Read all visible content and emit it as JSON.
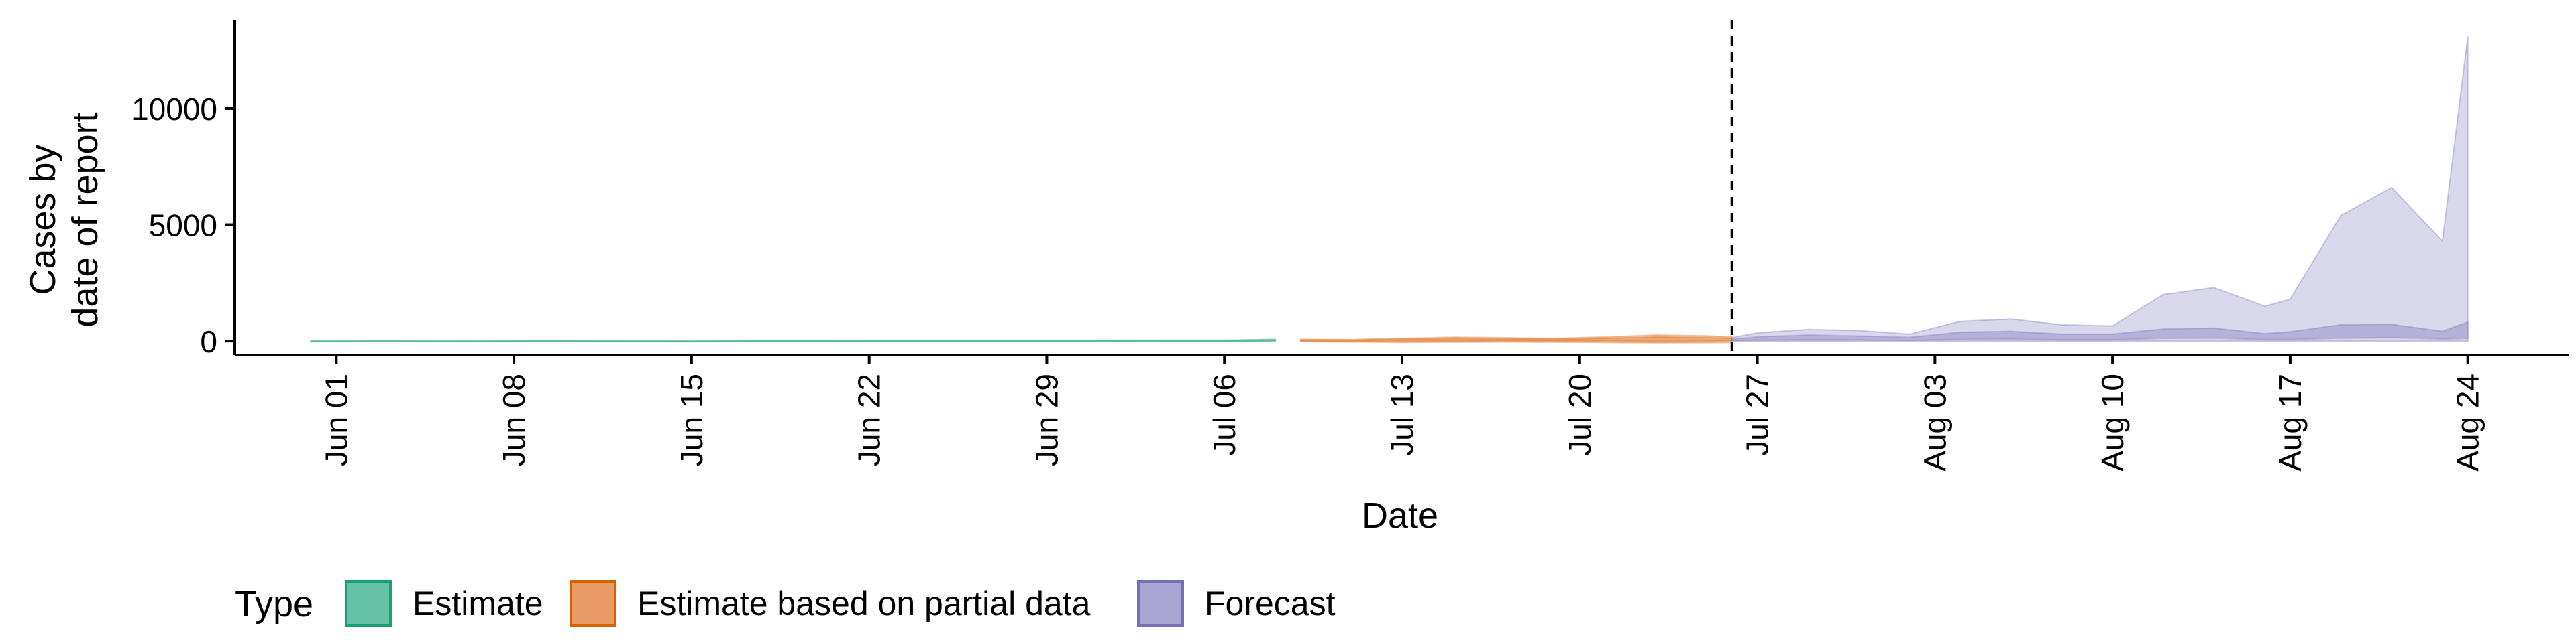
{
  "chart_data": {
    "type": "area",
    "title": "",
    "xlabel": "Date",
    "ylabel_lines": [
      "Cases by",
      "date of report"
    ],
    "y_ticks": [
      0,
      5000,
      10000
    ],
    "ylim": [
      -600,
      13800
    ],
    "xlim": [
      "2020-05-28",
      "2020-08-28"
    ],
    "x_ticks": [
      {
        "date": "2020-06-01",
        "label": "Jun 01"
      },
      {
        "date": "2020-06-08",
        "label": "Jun 08"
      },
      {
        "date": "2020-06-15",
        "label": "Jun 15"
      },
      {
        "date": "2020-06-22",
        "label": "Jun 22"
      },
      {
        "date": "2020-06-29",
        "label": "Jun 29"
      },
      {
        "date": "2020-07-06",
        "label": "Jul 06"
      },
      {
        "date": "2020-07-13",
        "label": "Jul 13"
      },
      {
        "date": "2020-07-20",
        "label": "Jul 20"
      },
      {
        "date": "2020-07-27",
        "label": "Jul 27"
      },
      {
        "date": "2020-08-03",
        "label": "Aug 03"
      },
      {
        "date": "2020-08-10",
        "label": "Aug 10"
      },
      {
        "date": "2020-08-17",
        "label": "Aug 17"
      },
      {
        "date": "2020-08-24",
        "label": "Aug 24"
      }
    ],
    "forecast_start": "2020-07-26",
    "grid": false,
    "legend": {
      "title": "Type",
      "position": "bottom-left",
      "entries": [
        {
          "label": "Estimate",
          "fill": "#66c2a5",
          "stroke": "#1b9e77"
        },
        {
          "label": "Estimate based on partial data",
          "fill": "#e99a62",
          "stroke": "#d95f02"
        },
        {
          "label": "Forecast",
          "fill": "#a9a6d4",
          "stroke": "#7570b3"
        }
      ]
    },
    "series": [
      {
        "name": "Estimate",
        "color": "#66c2a5",
        "stroke": "#1b9e77",
        "x": [
          "2020-05-31",
          "2020-06-03",
          "2020-06-06",
          "2020-06-09",
          "2020-06-12",
          "2020-06-15",
          "2020-06-18",
          "2020-06-21",
          "2020-06-24",
          "2020-06-27",
          "2020-06-30",
          "2020-07-03",
          "2020-07-06",
          "2020-07-08"
        ],
        "lower_outer": [
          -30,
          -25,
          -30,
          -25,
          -30,
          -35,
          -20,
          -25,
          -20,
          -25,
          -20,
          -15,
          -25,
          0
        ],
        "upper_outer": [
          10,
          15,
          10,
          20,
          15,
          10,
          30,
          25,
          35,
          30,
          30,
          45,
          40,
          80
        ],
        "lower_inner": [
          -15,
          -10,
          -15,
          -10,
          -15,
          -20,
          -5,
          -10,
          -5,
          -10,
          -5,
          0,
          -10,
          20
        ],
        "upper_inner": [
          0,
          5,
          0,
          8,
          5,
          0,
          15,
          10,
          20,
          15,
          15,
          28,
          25,
          60
        ]
      },
      {
        "name": "Estimate based on partial data",
        "color": "#e99a62",
        "stroke": "#d95f02",
        "x": [
          "2020-07-09",
          "2020-07-11",
          "2020-07-13",
          "2020-07-15",
          "2020-07-17",
          "2020-07-19",
          "2020-07-21",
          "2020-07-23",
          "2020-07-25",
          "2020-07-26"
        ],
        "lower_outer": [
          -20,
          -40,
          -60,
          -50,
          -40,
          -50,
          -60,
          -80,
          -70,
          -60
        ],
        "upper_outer": [
          80,
          70,
          120,
          170,
          150,
          120,
          180,
          260,
          230,
          180
        ],
        "lower_inner": [
          10,
          0,
          -10,
          0,
          10,
          0,
          0,
          -10,
          0,
          10
        ],
        "upper_inner": [
          50,
          40,
          80,
          110,
          100,
          80,
          120,
          180,
          160,
          120
        ]
      },
      {
        "name": "Forecast",
        "color": "#a9a6d4",
        "stroke": "#7570b3",
        "x": [
          "2020-07-26",
          "2020-07-27",
          "2020-07-29",
          "2020-07-31",
          "2020-08-02",
          "2020-08-04",
          "2020-08-06",
          "2020-08-08",
          "2020-08-10",
          "2020-08-12",
          "2020-08-14",
          "2020-08-16",
          "2020-08-17",
          "2020-08-19",
          "2020-08-21",
          "2020-08-23",
          "2020-08-24"
        ],
        "lower_outer": [
          0,
          0,
          0,
          0,
          0,
          0,
          0,
          0,
          0,
          0,
          0,
          0,
          0,
          0,
          0,
          0,
          0
        ],
        "upper_outer": [
          150,
          350,
          500,
          450,
          300,
          850,
          950,
          700,
          650,
          2000,
          2300,
          1500,
          1800,
          5400,
          6600,
          4300,
          13100
        ],
        "lower_inner": [
          20,
          40,
          60,
          50,
          30,
          80,
          90,
          60,
          60,
          120,
          130,
          70,
          70,
          130,
          150,
          90,
          120
        ],
        "upper_inner": [
          90,
          180,
          260,
          220,
          160,
          380,
          420,
          300,
          300,
          520,
          560,
          320,
          400,
          700,
          720,
          420,
          820
        ]
      }
    ]
  }
}
